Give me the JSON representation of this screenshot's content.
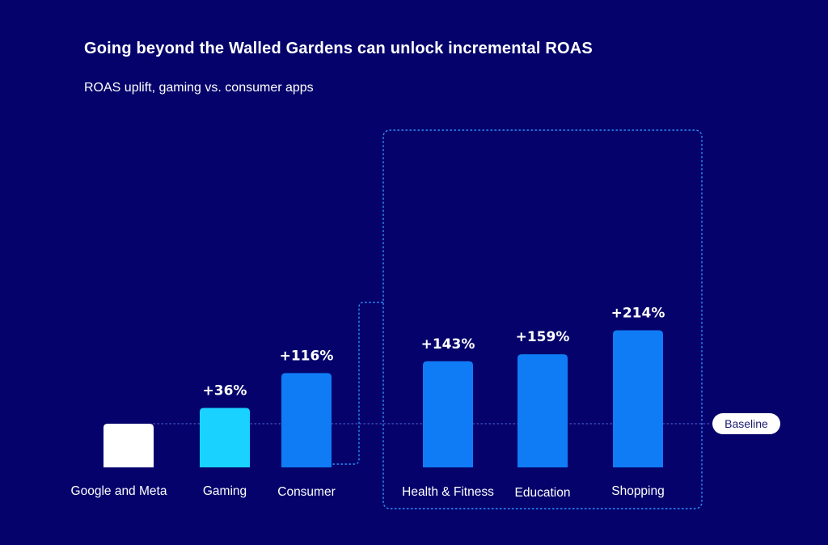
{
  "title": "Going beyond the Walled Gardens can unlock incremental ROAS",
  "subtitle": "ROAS uplift, gaming vs. consumer apps",
  "baseline_label": "Baseline",
  "colors": {
    "background": "#05036b",
    "google_meta": "#ffffff",
    "gaming": "#1ad2ff",
    "consumer": "#0f7cf5",
    "dotted": "#2e8fff"
  },
  "chart_data": {
    "type": "bar",
    "title": "Going beyond the Walled Gardens can unlock incremental ROAS",
    "subtitle": "ROAS uplift, gaming vs. consumer apps",
    "categories": [
      "Google and Meta",
      "Gaming",
      "Consumer",
      "Health & Fitness",
      "Education",
      "Shopping"
    ],
    "index_values": [
      100,
      136,
      216,
      243,
      259,
      314
    ],
    "uplift_labels": [
      "",
      "+36%",
      "+116%",
      "+143%",
      "+159%",
      "+214%"
    ],
    "baseline_value": 100,
    "highlight_group": [
      "Health & Fitness",
      "Education",
      "Shopping"
    ],
    "xlabel": "",
    "ylabel": ""
  }
}
